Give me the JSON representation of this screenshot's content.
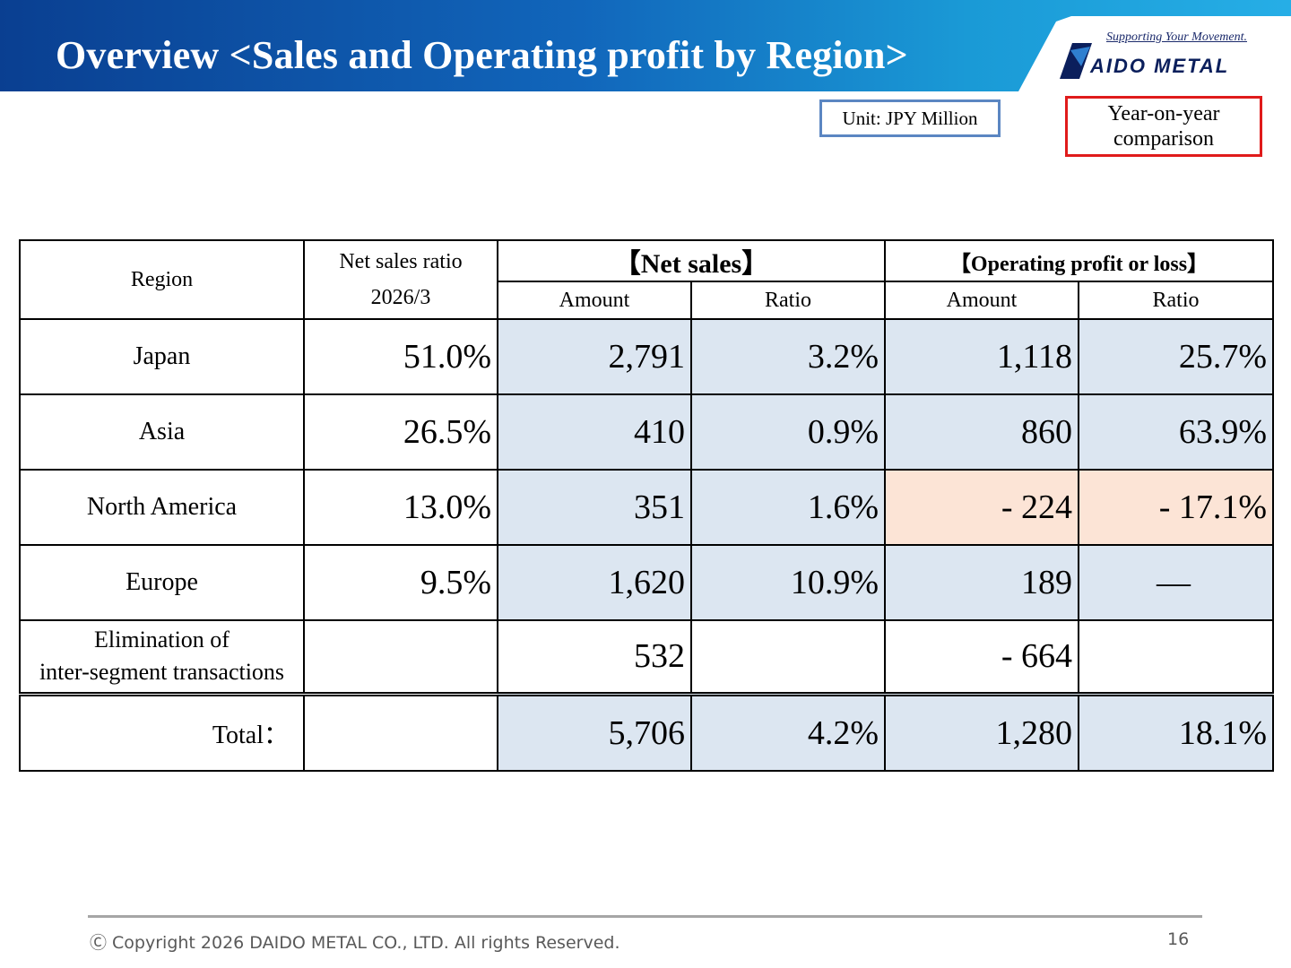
{
  "header": {
    "title": "Overview <Sales and Operating profit by Region>",
    "logo_tagline": "Supporting Your Movement.",
    "logo_text": "AIDO METAL"
  },
  "unit_label": "Unit: JPY Million",
  "yoy_label_line1": "Year-on-year",
  "yoy_label_line2": "comparison",
  "table": {
    "headers": {
      "region": "Region",
      "ratio_line1": "Net sales ratio",
      "ratio_line2": "2026/3",
      "net_sales": "【Net sales】",
      "operating": "【Operating profit or loss】",
      "amount": "Amount",
      "ratio": "Ratio"
    },
    "rows": [
      {
        "region": "Japan",
        "sales_ratio": "51.0%",
        "ns_amount": "2,791",
        "ns_ratio": "3.2%",
        "op_amount": "1,118",
        "op_ratio": "25.7%"
      },
      {
        "region": "Asia",
        "sales_ratio": "26.5%",
        "ns_amount": "410",
        "ns_ratio": "0.9%",
        "op_amount": "860",
        "op_ratio": "63.9%"
      },
      {
        "region": "North America",
        "sales_ratio": "13.0%",
        "ns_amount": "351",
        "ns_ratio": "1.6%",
        "op_amount": "- 224",
        "op_ratio": "- 17.1%"
      },
      {
        "region": "Europe",
        "sales_ratio": "9.5%",
        "ns_amount": "1,620",
        "ns_ratio": "10.9%",
        "op_amount": "189",
        "op_ratio": "—"
      },
      {
        "region_line1": "Elimination of",
        "region_line2": "inter-segment transactions",
        "sales_ratio": "",
        "ns_amount": "532",
        "ns_ratio": "",
        "op_amount": "- 664",
        "op_ratio": ""
      }
    ],
    "total": {
      "label": "Total：",
      "sales_ratio": "",
      "ns_amount": "5,706",
      "ns_ratio": "4.2%",
      "op_amount": "1,280",
      "op_ratio": "18.1%"
    }
  },
  "footer": {
    "copyright": "Ⓒ Copyright 2026 DAIDO METAL CO., LTD. All rights Reserved.",
    "page_number": "16"
  },
  "colors": {
    "header_dark": "#0a3f91",
    "header_light": "#26aee6",
    "highlight_blue": "#dce6f1",
    "highlight_peach": "#fce4d6",
    "unit_border": "#5b86c2",
    "yoy_border": "#e01b1b"
  }
}
